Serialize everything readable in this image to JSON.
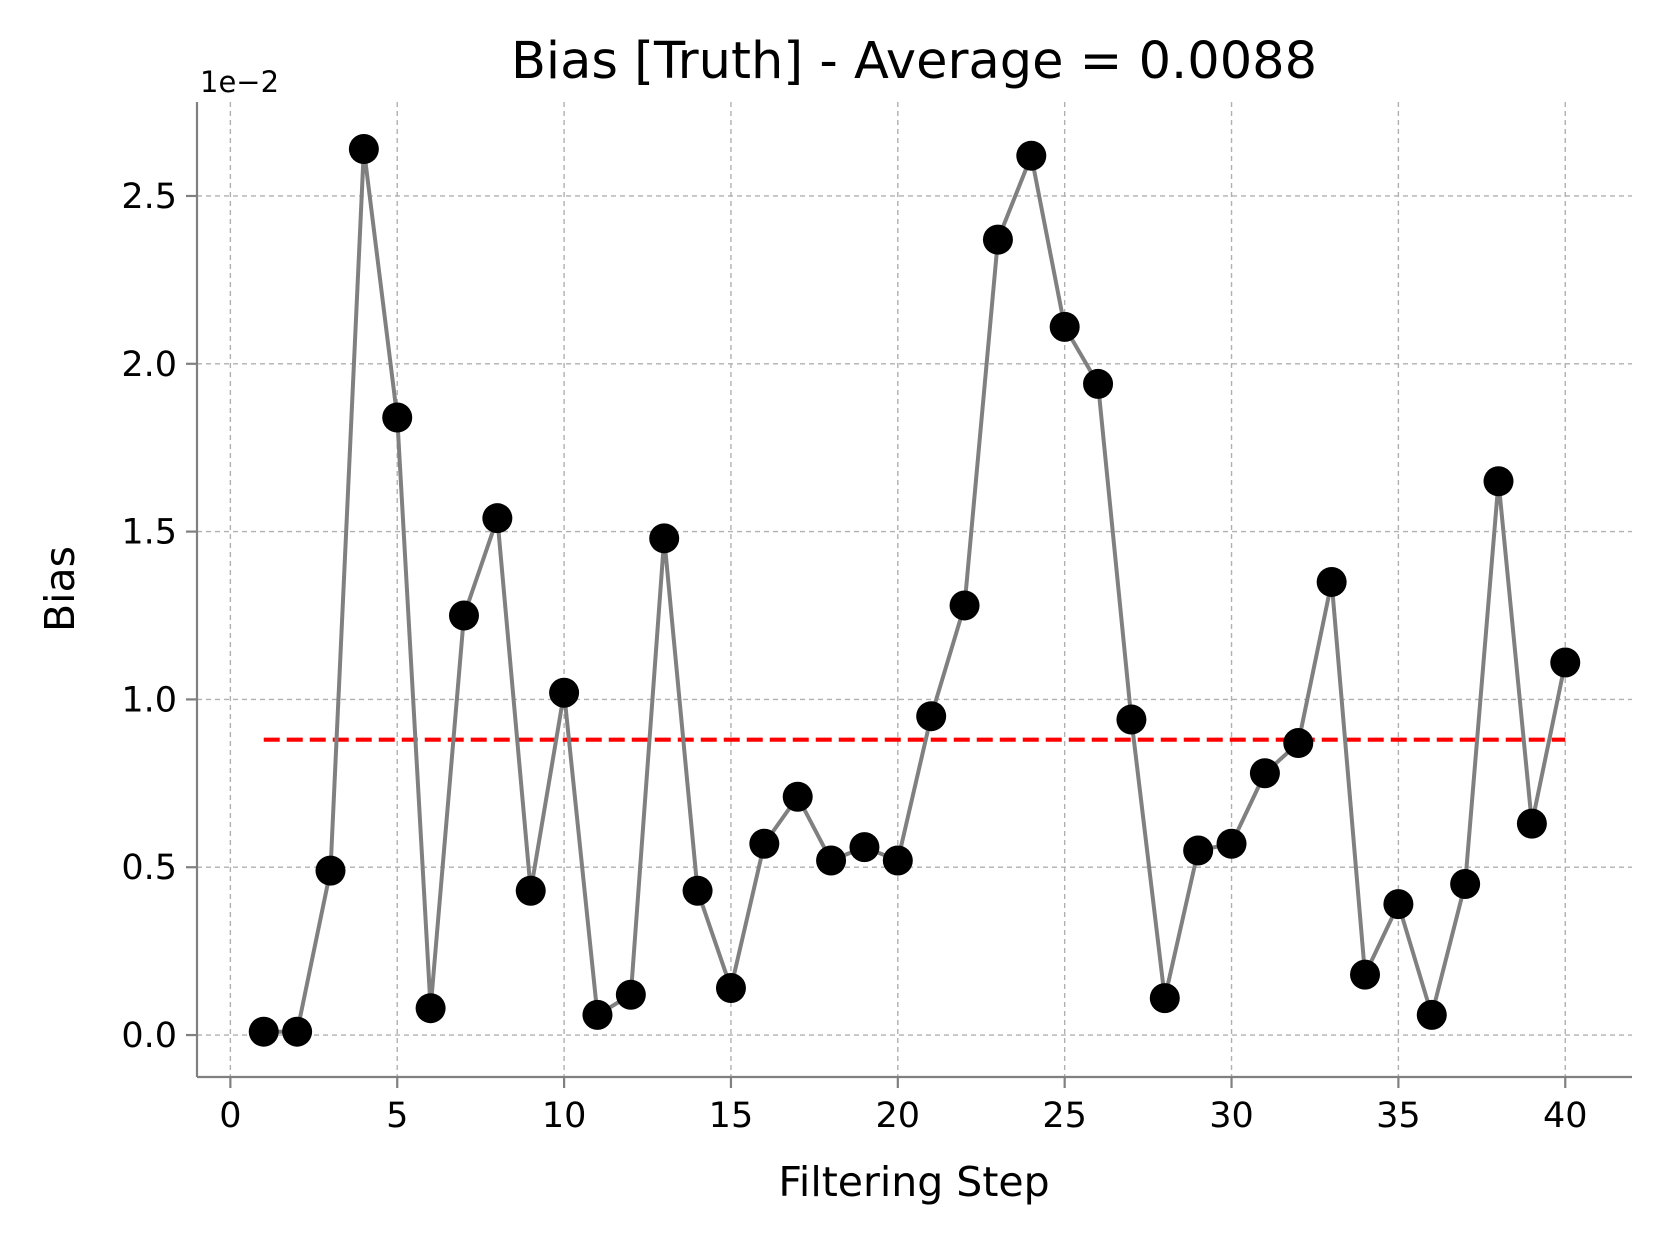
{
  "chart_data": {
    "type": "line",
    "title": "Bias [Truth] - Average = 0.0088",
    "xlabel": "Filtering Step",
    "ylabel": "Bias",
    "y_offset_label": "1e−2",
    "y_scale": 0.01,
    "xlim": [
      -1,
      42
    ],
    "ylim": [
      -0.125,
      2.78
    ],
    "xticks": [
      0,
      5,
      10,
      15,
      20,
      25,
      30,
      35,
      40
    ],
    "xtick_labels": [
      "0",
      "5",
      "10",
      "15",
      "20",
      "25",
      "30",
      "35",
      "40"
    ],
    "yticks": [
      0.0,
      0.5,
      1.0,
      1.5,
      2.0,
      2.5
    ],
    "ytick_labels": [
      "0.0",
      "0.5",
      "1.0",
      "1.5",
      "2.0",
      "2.5"
    ],
    "grid": true,
    "series": [
      {
        "name": "Bias",
        "color": "#808080",
        "marker_color": "#000000",
        "x": [
          1,
          2,
          3,
          4,
          5,
          6,
          7,
          8,
          9,
          10,
          11,
          12,
          13,
          14,
          15,
          16,
          17,
          18,
          19,
          20,
          21,
          22,
          23,
          24,
          25,
          26,
          27,
          28,
          29,
          30,
          31,
          32,
          33,
          34,
          35,
          36,
          37,
          38,
          39,
          40
        ],
        "values": [
          0.01,
          0.01,
          0.49,
          2.64,
          1.84,
          0.08,
          1.25,
          1.54,
          0.43,
          1.02,
          0.06,
          0.12,
          1.48,
          0.43,
          0.14,
          0.57,
          0.71,
          0.52,
          0.56,
          0.52,
          0.95,
          1.28,
          2.37,
          2.62,
          2.11,
          1.94,
          0.94,
          0.11,
          0.55,
          0.57,
          0.78,
          0.87,
          1.35,
          0.18,
          0.39,
          0.06,
          0.45,
          1.65,
          0.63,
          1.11
        ]
      }
    ],
    "average": {
      "name": "Average",
      "value": 0.88,
      "x_range": [
        1,
        40
      ],
      "color": "#ff0000"
    }
  }
}
